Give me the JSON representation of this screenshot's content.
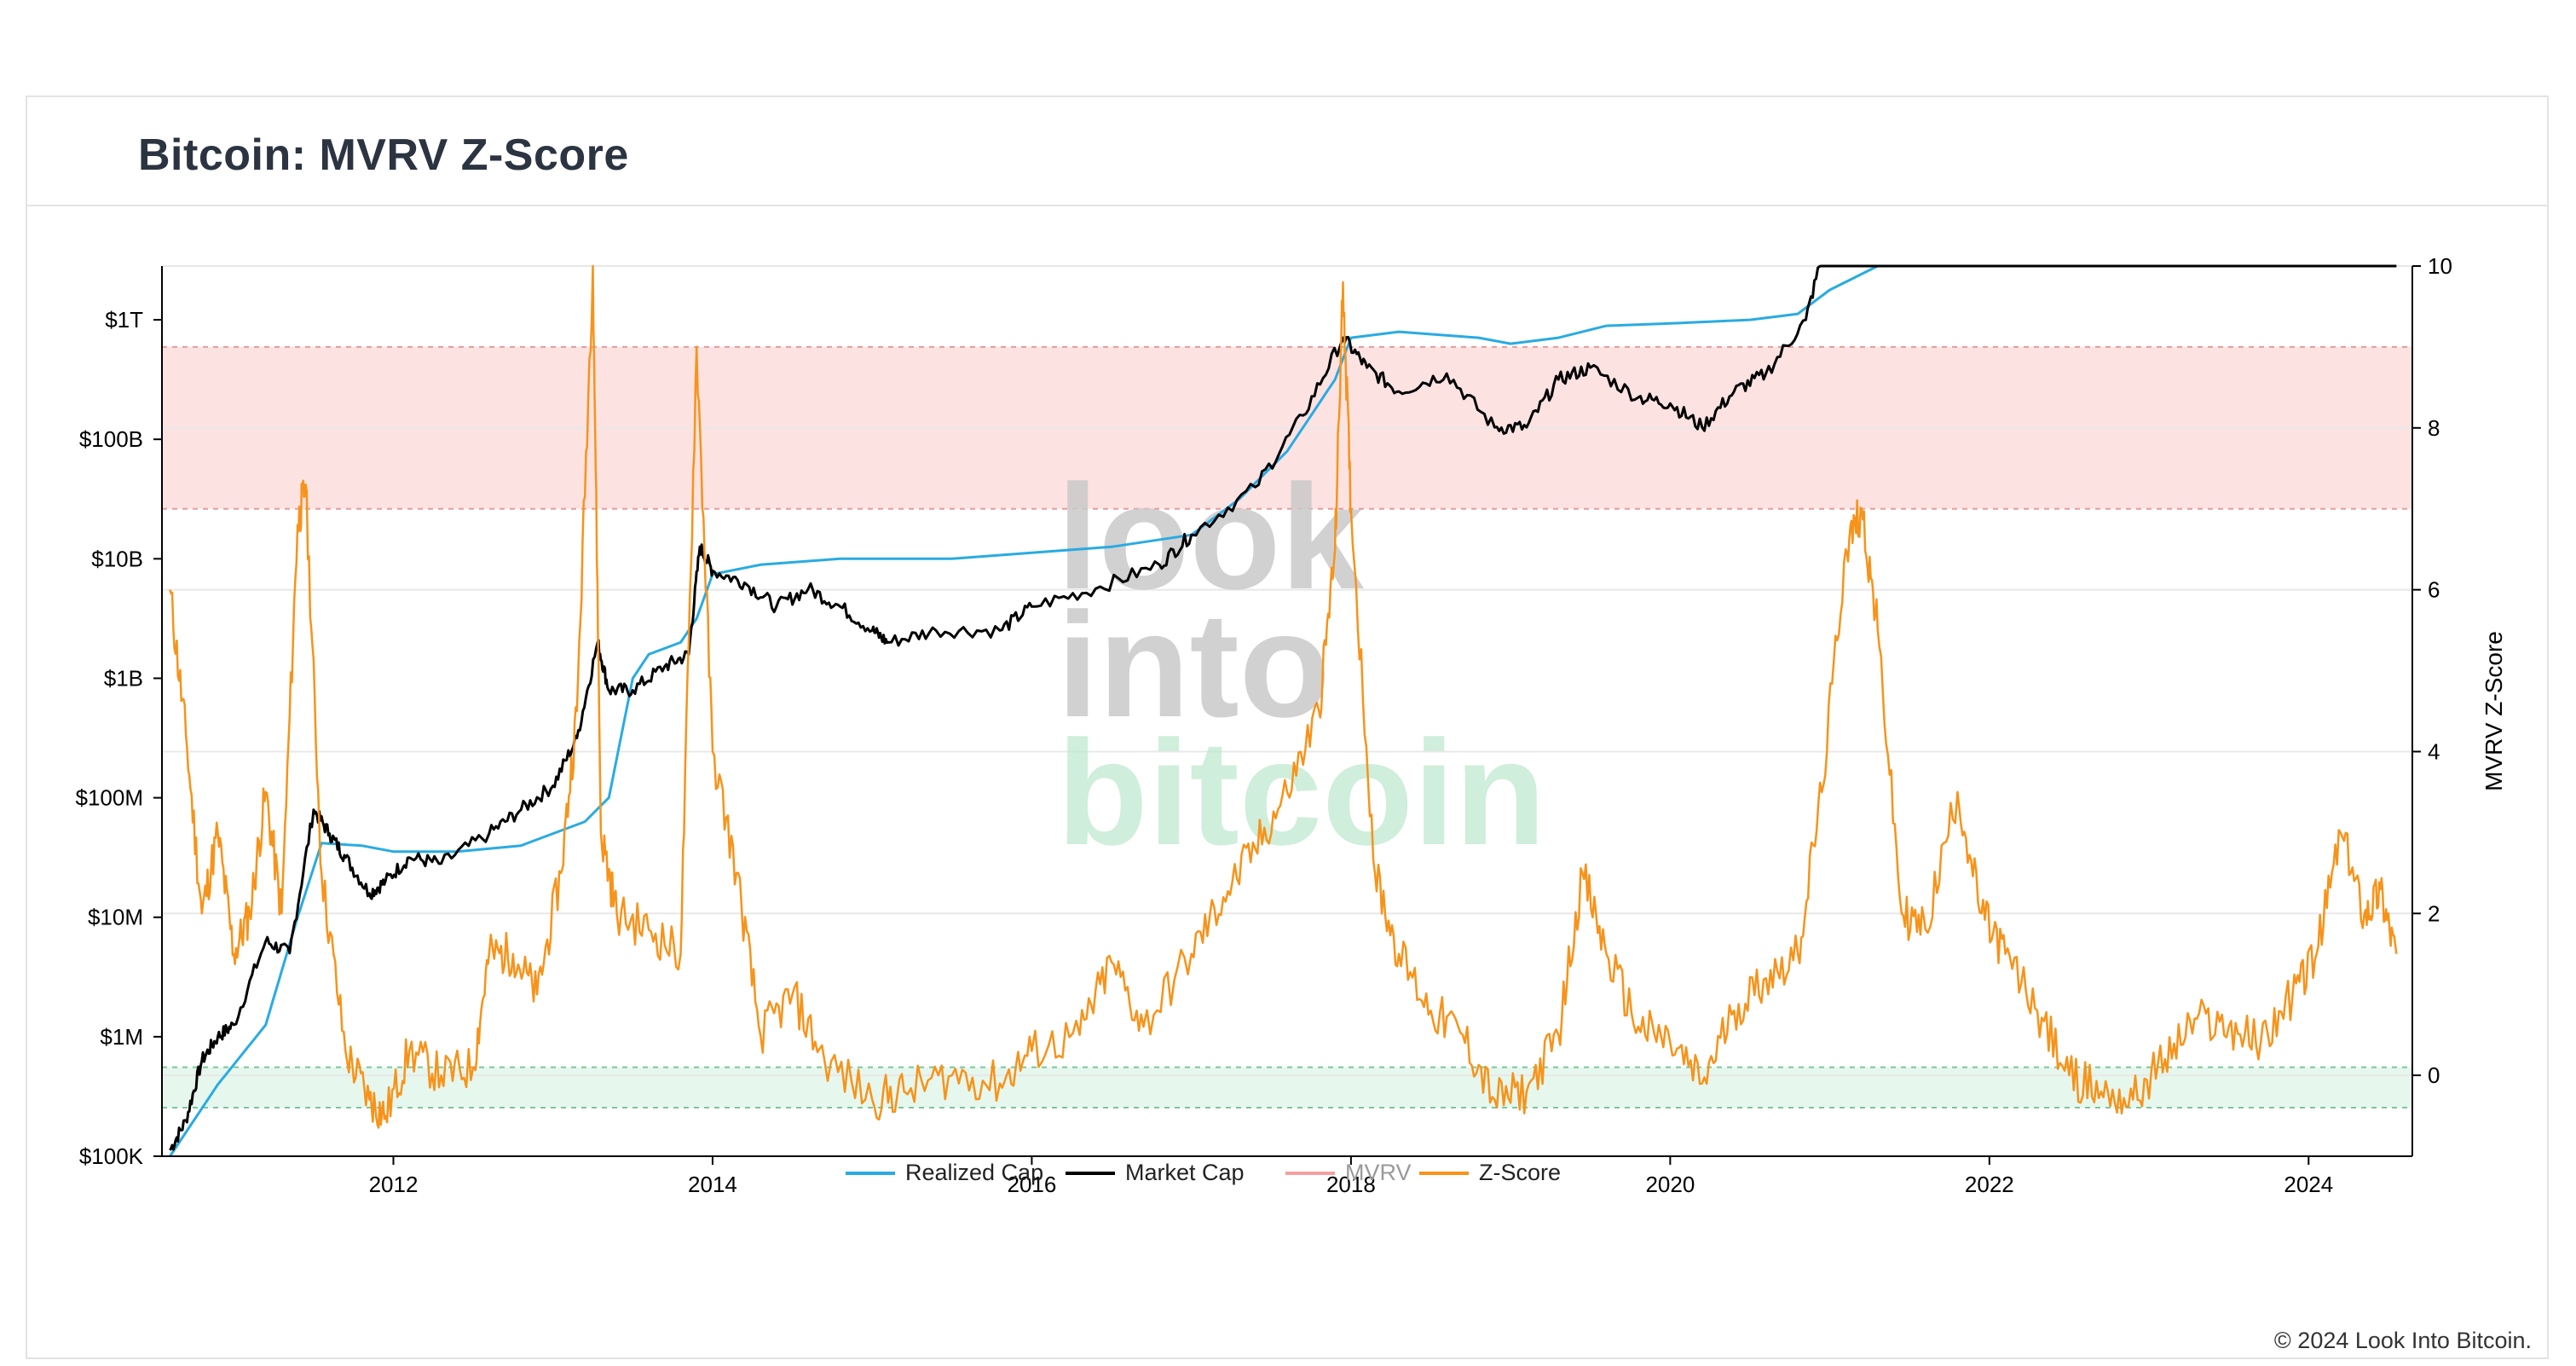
{
  "title": "Bitcoin: MVRV Z-Score",
  "footer": "© 2024 Look Into Bitcoin.",
  "watermark": {
    "line1": "look",
    "line2": "into",
    "line3": "bitcoin"
  },
  "colors": {
    "realized_cap": "#29abe2",
    "market_cap": "#000000",
    "mvrv": "#f4a0a0",
    "z_score": "#f7931a",
    "red_zone": "#fde2e2",
    "green_zone": "#e6f7ee"
  },
  "legend": {
    "realized_cap": "Realized Cap",
    "market_cap": "Market Cap",
    "mvrv": "MVRV",
    "z_score": "Z-Score"
  },
  "chart_data": {
    "type": "line",
    "x_ticks": [
      "2012",
      "2014",
      "2016",
      "2018",
      "2020",
      "2022",
      "2024"
    ],
    "x_range": [
      2010.55,
      2024.65
    ],
    "y_left": {
      "scale": "log",
      "ticks": [
        "$100K",
        "$1M",
        "$10M",
        "$100M",
        "$1B",
        "$10B",
        "$100B",
        "$1T"
      ],
      "range_log10": [
        5,
        12.45
      ]
    },
    "y_right": {
      "label": "MVRV Z-Score",
      "ticks": [
        "0",
        "2",
        "4",
        "6",
        "8",
        "10"
      ],
      "range": [
        -1,
        10
      ]
    },
    "zones": {
      "red": [
        7,
        9
      ],
      "green": [
        -0.4,
        0.1
      ]
    },
    "grid": true,
    "legend_position": "bottom-center",
    "series": [
      {
        "name": "Realized Cap",
        "axis": "left",
        "log10_points": [
          [
            2010.6,
            5.0
          ],
          [
            2010.9,
            5.6
          ],
          [
            2011.2,
            6.1
          ],
          [
            2011.4,
            7.0
          ],
          [
            2011.55,
            7.62
          ],
          [
            2011.8,
            7.6
          ],
          [
            2012.0,
            7.55
          ],
          [
            2012.4,
            7.55
          ],
          [
            2012.8,
            7.6
          ],
          [
            2013.0,
            7.7
          ],
          [
            2013.2,
            7.8
          ],
          [
            2013.35,
            8.0
          ],
          [
            2013.5,
            9.0
          ],
          [
            2013.6,
            9.2
          ],
          [
            2013.8,
            9.3
          ],
          [
            2013.9,
            9.5
          ],
          [
            2014.0,
            9.87
          ],
          [
            2014.3,
            9.95
          ],
          [
            2014.8,
            10.0
          ],
          [
            2015.5,
            10.0
          ],
          [
            2016.0,
            10.05
          ],
          [
            2016.5,
            10.1
          ],
          [
            2017.0,
            10.2
          ],
          [
            2017.3,
            10.5
          ],
          [
            2017.6,
            10.9
          ],
          [
            2017.9,
            11.5
          ],
          [
            2018.0,
            11.85
          ],
          [
            2018.3,
            11.9
          ],
          [
            2018.8,
            11.85
          ],
          [
            2019.0,
            11.8
          ],
          [
            2019.3,
            11.85
          ],
          [
            2019.6,
            11.95
          ],
          [
            2020.0,
            11.97
          ],
          [
            2020.5,
            12.0
          ],
          [
            2020.8,
            12.05
          ],
          [
            2021.0,
            12.25
          ],
          [
            2021.3,
            12.45
          ],
          [
            2021.6,
            12.47
          ],
          [
            2021.9,
            12.55
          ],
          [
            2022.2,
            12.55
          ],
          [
            2022.5,
            12.52
          ],
          [
            2022.9,
            12.45
          ],
          [
            2023.3,
            12.45
          ],
          [
            2023.8,
            12.47
          ],
          [
            2024.0,
            12.5
          ],
          [
            2024.2,
            12.6
          ],
          [
            2024.55,
            12.62
          ]
        ]
      },
      {
        "name": "Market Cap",
        "axis": "left",
        "log10_points": [
          [
            2010.6,
            5.05
          ],
          [
            2010.7,
            5.3
          ],
          [
            2010.8,
            5.8
          ],
          [
            2010.9,
            6.0
          ],
          [
            2011.0,
            6.1
          ],
          [
            2011.2,
            6.8
          ],
          [
            2011.35,
            6.7
          ],
          [
            2011.5,
            7.9
          ],
          [
            2011.6,
            7.7
          ],
          [
            2011.7,
            7.5
          ],
          [
            2011.85,
            7.2
          ],
          [
            2011.95,
            7.3
          ],
          [
            2012.1,
            7.5
          ],
          [
            2012.3,
            7.45
          ],
          [
            2012.6,
            7.7
          ],
          [
            2012.8,
            7.9
          ],
          [
            2013.0,
            8.1
          ],
          [
            2013.15,
            8.5
          ],
          [
            2013.28,
            9.3
          ],
          [
            2013.35,
            8.9
          ],
          [
            2013.5,
            8.9
          ],
          [
            2013.7,
            9.1
          ],
          [
            2013.85,
            9.2
          ],
          [
            2013.92,
            10.1
          ],
          [
            2014.0,
            9.9
          ],
          [
            2014.2,
            9.8
          ],
          [
            2014.4,
            9.6
          ],
          [
            2014.6,
            9.75
          ],
          [
            2014.8,
            9.6
          ],
          [
            2015.0,
            9.4
          ],
          [
            2015.1,
            9.3
          ],
          [
            2015.4,
            9.4
          ],
          [
            2015.8,
            9.4
          ],
          [
            2016.0,
            9.6
          ],
          [
            2016.4,
            9.75
          ],
          [
            2016.8,
            9.95
          ],
          [
            2017.0,
            10.2
          ],
          [
            2017.4,
            10.6
          ],
          [
            2017.7,
            11.2
          ],
          [
            2017.95,
            11.85
          ],
          [
            2018.1,
            11.6
          ],
          [
            2018.3,
            11.4
          ],
          [
            2018.6,
            11.55
          ],
          [
            2018.9,
            11.1
          ],
          [
            2019.1,
            11.1
          ],
          [
            2019.3,
            11.5
          ],
          [
            2019.5,
            11.6
          ],
          [
            2019.8,
            11.35
          ],
          [
            2020.0,
            11.3
          ],
          [
            2020.2,
            11.1
          ],
          [
            2020.4,
            11.4
          ],
          [
            2020.6,
            11.55
          ],
          [
            2020.85,
            12.0
          ],
          [
            2021.0,
            12.8
          ],
          [
            2021.2,
            13.05
          ],
          [
            2021.5,
            12.75
          ],
          [
            2021.7,
            12.85
          ],
          [
            2021.85,
            13.0
          ],
          [
            2022.0,
            12.9
          ],
          [
            2022.3,
            12.7
          ],
          [
            2022.5,
            12.6
          ],
          [
            2022.8,
            12.55
          ],
          [
            2023.0,
            12.55
          ],
          [
            2023.3,
            12.7
          ],
          [
            2023.6,
            12.7
          ],
          [
            2023.9,
            12.8
          ],
          [
            2024.0,
            13.0
          ],
          [
            2024.2,
            13.15
          ],
          [
            2024.4,
            13.1
          ],
          [
            2024.55,
            13.05
          ]
        ]
      },
      {
        "name": "Z-Score",
        "axis": "right",
        "points": [
          [
            2010.6,
            6.0
          ],
          [
            2010.7,
            4.2
          ],
          [
            2010.8,
            2.0
          ],
          [
            2010.9,
            3.0
          ],
          [
            2011.0,
            1.5
          ],
          [
            2011.1,
            2.0
          ],
          [
            2011.2,
            3.5
          ],
          [
            2011.3,
            2.0
          ],
          [
            2011.4,
            6.8
          ],
          [
            2011.45,
            7.3
          ],
          [
            2011.55,
            2.5
          ],
          [
            2011.7,
            0.3
          ],
          [
            2011.85,
            -0.3
          ],
          [
            2011.95,
            -0.5
          ],
          [
            2012.1,
            0.3
          ],
          [
            2012.3,
            0.0
          ],
          [
            2012.5,
            0.1
          ],
          [
            2012.6,
            1.5
          ],
          [
            2012.75,
            1.5
          ],
          [
            2012.9,
            1.0
          ],
          [
            2013.05,
            2.5
          ],
          [
            2013.15,
            4.5
          ],
          [
            2013.25,
            10.0
          ],
          [
            2013.3,
            3.0
          ],
          [
            2013.4,
            2.0
          ],
          [
            2013.6,
            1.8
          ],
          [
            2013.8,
            1.5
          ],
          [
            2013.9,
            9.0
          ],
          [
            2014.0,
            4.0
          ],
          [
            2014.15,
            2.5
          ],
          [
            2014.3,
            0.5
          ],
          [
            2014.5,
            1.0
          ],
          [
            2014.7,
            0.2
          ],
          [
            2015.0,
            -0.3
          ],
          [
            2015.2,
            -0.2
          ],
          [
            2015.5,
            0.0
          ],
          [
            2015.8,
            -0.1
          ],
          [
            2016.0,
            0.3
          ],
          [
            2016.3,
            0.5
          ],
          [
            2016.5,
            1.4
          ],
          [
            2016.7,
            0.6
          ],
          [
            2017.0,
            1.5
          ],
          [
            2017.2,
            2.2
          ],
          [
            2017.4,
            2.8
          ],
          [
            2017.6,
            3.5
          ],
          [
            2017.8,
            4.5
          ],
          [
            2017.9,
            6.5
          ],
          [
            2017.95,
            9.8
          ],
          [
            2018.0,
            7.0
          ],
          [
            2018.15,
            2.5
          ],
          [
            2018.3,
            1.5
          ],
          [
            2018.5,
            0.8
          ],
          [
            2018.7,
            0.5
          ],
          [
            2018.9,
            -0.3
          ],
          [
            2019.1,
            -0.2
          ],
          [
            2019.3,
            0.5
          ],
          [
            2019.45,
            2.5
          ],
          [
            2019.6,
            1.5
          ],
          [
            2019.8,
            0.6
          ],
          [
            2020.0,
            0.4
          ],
          [
            2020.2,
            -0.1
          ],
          [
            2020.4,
            0.8
          ],
          [
            2020.6,
            1.2
          ],
          [
            2020.8,
            1.5
          ],
          [
            2020.95,
            3.5
          ],
          [
            2021.1,
            6.5
          ],
          [
            2021.2,
            7.0
          ],
          [
            2021.3,
            5.5
          ],
          [
            2021.45,
            2.0
          ],
          [
            2021.6,
            1.8
          ],
          [
            2021.8,
            3.5
          ],
          [
            2021.95,
            2.0
          ],
          [
            2022.1,
            1.5
          ],
          [
            2022.3,
            0.8
          ],
          [
            2022.5,
            0.0
          ],
          [
            2022.7,
            -0.2
          ],
          [
            2022.9,
            -0.3
          ],
          [
            2023.1,
            0.2
          ],
          [
            2023.3,
            0.7
          ],
          [
            2023.5,
            0.6
          ],
          [
            2023.7,
            0.4
          ],
          [
            2023.9,
            1.0
          ],
          [
            2024.05,
            1.5
          ],
          [
            2024.2,
            3.0
          ],
          [
            2024.35,
            2.0
          ],
          [
            2024.45,
            2.3
          ],
          [
            2024.55,
            1.5
          ]
        ]
      }
    ]
  }
}
